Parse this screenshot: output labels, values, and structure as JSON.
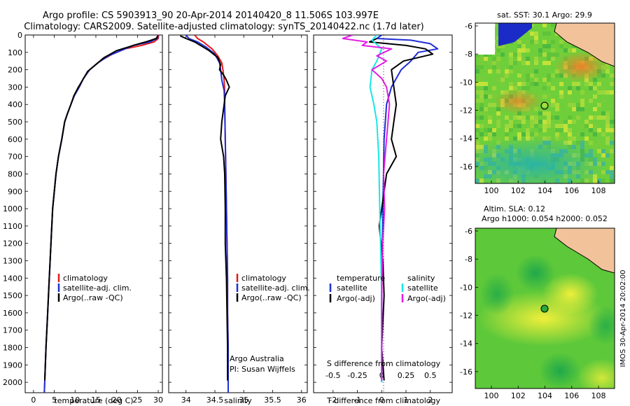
{
  "figure": {
    "title_line1": "Argo profile: CS 5903913_90 20-Apr-2014 20140420_8 11.506S 103.997E",
    "title_line2": "Climatology: CARS2009. Satellite-adjusted climatology: synTS_20140422.nc (1.7d later)",
    "side_stamp": "IMOS 30-Apr-2014 20:02:00"
  },
  "colors": {
    "climatology": "#e41b1b",
    "satellite": "#1f2fd6",
    "argo": "#000000",
    "sat_salinity": "#19e6e6",
    "argo_salinity_adj": "#e31ee6"
  },
  "chart_data": [
    {
      "type": "line",
      "id": "temperature",
      "title": "",
      "xlabel": "temperature (deg C)",
      "ylabel": "",
      "xlim": [
        -2,
        31
      ],
      "ylim": [
        2060,
        0
      ],
      "xticks": [
        0,
        5,
        10,
        15,
        20,
        25,
        30
      ],
      "yticks": [
        0,
        100,
        200,
        300,
        400,
        500,
        600,
        700,
        800,
        900,
        1000,
        1100,
        1200,
        1300,
        1400,
        1500,
        1600,
        1700,
        1800,
        1900,
        2000
      ],
      "legend": [
        "climatology",
        "satellite-adj. clim.",
        "Argo(..raw -QC)"
      ],
      "series": [
        {
          "name": "climatology",
          "color": "#e41b1b",
          "points": [
            [
              30.1,
              0
            ],
            [
              30,
              20
            ],
            [
              29,
              40
            ],
            [
              26,
              60
            ],
            [
              22,
              80
            ],
            [
              19,
              110
            ],
            [
              16,
              150
            ],
            [
              13.5,
              200
            ],
            [
              12,
              250
            ],
            [
              11,
              300
            ],
            [
              9.8,
              350
            ],
            [
              9,
              400
            ],
            [
              8.2,
              450
            ],
            [
              7.5,
              500
            ],
            [
              6.8,
              600
            ],
            [
              6,
              700
            ],
            [
              5.4,
              800
            ],
            [
              5,
              900
            ],
            [
              4.6,
              1000
            ],
            [
              4.2,
              1200
            ],
            [
              3.8,
              1400
            ],
            [
              3.4,
              1600
            ],
            [
              3,
              1800
            ],
            [
              2.7,
              2000
            ],
            [
              2.6,
              2060
            ]
          ]
        },
        {
          "name": "satellite-adj. clim.",
          "color": "#1f2fd6",
          "points": [
            [
              29.9,
              0
            ],
            [
              29.8,
              20
            ],
            [
              28,
              40
            ],
            [
              24,
              60
            ],
            [
              21,
              90
            ],
            [
              18,
              120
            ],
            [
              15.5,
              160
            ],
            [
              13.5,
              200
            ],
            [
              12,
              250
            ],
            [
              11,
              300
            ],
            [
              9.8,
              350
            ],
            [
              9,
              400
            ],
            [
              8.2,
              450
            ],
            [
              7.5,
              500
            ],
            [
              6.8,
              600
            ],
            [
              6,
              700
            ],
            [
              5.4,
              800
            ],
            [
              5,
              900
            ],
            [
              4.6,
              1000
            ],
            [
              4.2,
              1200
            ],
            [
              3.8,
              1400
            ],
            [
              3.4,
              1600
            ],
            [
              3,
              1800
            ],
            [
              2.7,
              2000
            ],
            [
              2.6,
              2060
            ]
          ]
        },
        {
          "name": "Argo(..raw -QC)",
          "color": "#000000",
          "points": [
            [
              29.9,
              5
            ],
            [
              29.5,
              20
            ],
            [
              27,
              40
            ],
            [
              24,
              60
            ],
            [
              20,
              90
            ],
            [
              17,
              130
            ],
            [
              15,
              170
            ],
            [
              13,
              210
            ],
            [
              11.8,
              260
            ],
            [
              10.8,
              300
            ],
            [
              9.7,
              350
            ],
            [
              9,
              400
            ],
            [
              8.2,
              450
            ],
            [
              7.5,
              500
            ],
            [
              6.8,
              600
            ],
            [
              6,
              700
            ],
            [
              5.4,
              800
            ],
            [
              5,
              900
            ],
            [
              4.6,
              1000
            ],
            [
              4.2,
              1200
            ],
            [
              3.8,
              1400
            ],
            [
              3.4,
              1600
            ],
            [
              3,
              1800
            ],
            [
              2.7,
              1990
            ]
          ]
        }
      ]
    },
    {
      "type": "line",
      "id": "salinity",
      "title": "",
      "xlabel": "salinity",
      "ylabel": "",
      "xlim": [
        33.7,
        36.1
      ],
      "ylim": [
        2060,
        0
      ],
      "xticks": [
        34,
        34.5,
        35,
        35.5,
        36
      ],
      "xticklabels": [
        "34",
        "34.5",
        "35",
        "35.5",
        "36"
      ],
      "legend": [
        "climatology",
        "satellite-adj. clim.",
        "Argo(..raw -QC)"
      ],
      "annotations": [
        "Argo Australia",
        "PI: Susan Wijffels"
      ],
      "series": [
        {
          "name": "climatology",
          "color": "#e41b1b",
          "points": [
            [
              34.15,
              0
            ],
            [
              34.2,
              20
            ],
            [
              34.3,
              40
            ],
            [
              34.45,
              80
            ],
            [
              34.55,
              120
            ],
            [
              34.62,
              160
            ],
            [
              34.64,
              200
            ],
            [
              34.66,
              260
            ],
            [
              34.67,
              320
            ],
            [
              34.67,
              400
            ],
            [
              34.68,
              600
            ],
            [
              34.69,
              800
            ],
            [
              34.7,
              1000
            ],
            [
              34.71,
              1200
            ],
            [
              34.72,
              1400
            ],
            [
              34.72,
              1600
            ],
            [
              34.73,
              1800
            ],
            [
              34.73,
              2000
            ],
            [
              34.73,
              2060
            ]
          ]
        },
        {
          "name": "satellite-adj. clim.",
          "color": "#1f2fd6",
          "points": [
            [
              34.0,
              0
            ],
            [
              34.05,
              20
            ],
            [
              34.2,
              40
            ],
            [
              34.35,
              70
            ],
            [
              34.5,
              110
            ],
            [
              34.58,
              160
            ],
            [
              34.6,
              200
            ],
            [
              34.62,
              260
            ],
            [
              34.66,
              320
            ],
            [
              34.67,
              400
            ],
            [
              34.68,
              600
            ],
            [
              34.69,
              800
            ],
            [
              34.7,
              1000
            ],
            [
              34.71,
              1200
            ],
            [
              34.72,
              1400
            ],
            [
              34.72,
              1600
            ],
            [
              34.73,
              1800
            ],
            [
              34.73,
              2000
            ],
            [
              34.73,
              2060
            ]
          ]
        },
        {
          "name": "Argo(..raw -QC)",
          "color": "#000000",
          "points": [
            [
              33.9,
              5
            ],
            [
              34.0,
              20
            ],
            [
              34.15,
              40
            ],
            [
              34.25,
              60
            ],
            [
              34.4,
              90
            ],
            [
              34.55,
              130
            ],
            [
              34.6,
              170
            ],
            [
              34.58,
              200
            ],
            [
              34.65,
              230
            ],
            [
              34.7,
              260
            ],
            [
              34.75,
              300
            ],
            [
              34.68,
              350
            ],
            [
              34.66,
              400
            ],
            [
              34.62,
              500
            ],
            [
              34.6,
              600
            ],
            [
              34.65,
              700
            ],
            [
              34.67,
              800
            ],
            [
              34.68,
              1000
            ],
            [
              34.68,
              1200
            ],
            [
              34.7,
              1400
            ],
            [
              34.71,
              1600
            ],
            [
              34.72,
              1800
            ],
            [
              34.72,
              1990
            ]
          ]
        }
      ]
    },
    {
      "type": "line",
      "id": "differences",
      "title": "",
      "xlabel": "T difference from climatology",
      "xlabel_top": "S difference from climatology",
      "xlim": [
        -2.8,
        2.9
      ],
      "ylim": [
        2060,
        0
      ],
      "xticks": [
        -2,
        -1,
        0,
        1,
        2
      ],
      "sticks": [
        -0.5,
        -0.25,
        0,
        0.25,
        0.5
      ],
      "sticklabels": [
        "-0.5",
        "-0.25",
        "0",
        "0.25",
        "0.5"
      ],
      "legend_temperature_title": "temperature",
      "legend_salinity_title": "salinity",
      "legend_temperature": [
        "satellite",
        "Argo(-adj)"
      ],
      "legend_salinity": [
        "satellite",
        "Argo(-adj)"
      ],
      "series": [
        {
          "name": "temperature satellite",
          "color": "#1f2fd6",
          "points": [
            [
              0,
              0
            ],
            [
              -0.2,
              20
            ],
            [
              1.2,
              30
            ],
            [
              2.0,
              50
            ],
            [
              2.3,
              80
            ],
            [
              1.5,
              100
            ],
            [
              1.2,
              150
            ],
            [
              0.8,
              200
            ],
            [
              0.4,
              300
            ],
            [
              0.2,
              400
            ],
            [
              0.1,
              600
            ],
            [
              0.05,
              1000
            ],
            [
              0,
              1500
            ],
            [
              0,
              2000
            ]
          ]
        },
        {
          "name": "temperature Argo(-adj)",
          "color": "#000000",
          "points": [
            [
              -0.2,
              20
            ],
            [
              -0.5,
              40
            ],
            [
              1.0,
              60
            ],
            [
              1.8,
              80
            ],
            [
              2.1,
              110
            ],
            [
              0.9,
              150
            ],
            [
              0.4,
              200
            ],
            [
              0.5,
              300
            ],
            [
              0.6,
              400
            ],
            [
              0.5,
              500
            ],
            [
              0.4,
              600
            ],
            [
              0.6,
              700
            ],
            [
              0.2,
              800
            ],
            [
              0,
              1000
            ],
            [
              -0.1,
              1100
            ],
            [
              0.05,
              1300
            ],
            [
              0.1,
              1500
            ],
            [
              0,
              1800
            ],
            [
              0.1,
              1990
            ]
          ]
        },
        {
          "name": "salinity satellite",
          "color": "#19e6e6",
          "points": [
            [
              -0.05,
              0
            ],
            [
              -0.1,
              30
            ],
            [
              0,
              80
            ],
            [
              -0.05,
              150
            ],
            [
              -0.1,
              200
            ],
            [
              -0.12,
              300
            ],
            [
              -0.08,
              400
            ],
            [
              -0.05,
              500
            ],
            [
              -0.03,
              700
            ],
            [
              -0.02,
              1000
            ],
            [
              0,
              1500
            ],
            [
              0,
              2000
            ]
          ]
        },
        {
          "name": "salinity Argo(-adj)",
          "color": "#e31ee6",
          "points": [
            [
              -0.3,
              0
            ],
            [
              -0.4,
              20
            ],
            [
              -0.15,
              40
            ],
            [
              -0.2,
              60
            ],
            [
              0.1,
              80
            ],
            [
              -0.05,
              120
            ],
            [
              0.05,
              150
            ],
            [
              -0.1,
              200
            ],
            [
              0,
              250
            ],
            [
              0.05,
              300
            ],
            [
              0.08,
              400
            ],
            [
              0.05,
              600
            ],
            [
              0.02,
              800
            ],
            [
              0.03,
              1000
            ],
            [
              0.01,
              1200
            ],
            [
              0,
              1500
            ],
            [
              0,
              1800
            ],
            [
              0,
              1990
            ]
          ]
        }
      ]
    },
    {
      "type": "heatmap",
      "id": "sst_map",
      "title": "sat. SST: 30.1 Argo: 29.9",
      "xticks": [
        100,
        102,
        104,
        106,
        108
      ],
      "yticks": [
        -6,
        -8,
        -10,
        -12,
        -14,
        -16
      ],
      "xlim": [
        98.8,
        109.2
      ],
      "ylim": [
        -17.2,
        -5.8
      ],
      "argo_position": [
        103.997,
        -11.506
      ]
    },
    {
      "type": "heatmap",
      "id": "sla_map",
      "title": "Altim. SLA: 0.12",
      "subtitle": "Argo h1000: 0.054 h2000: 0.052",
      "xticks": [
        100,
        102,
        104,
        106,
        108
      ],
      "yticks": [
        -6,
        -8,
        -10,
        -12,
        -14,
        -16
      ],
      "xlim": [
        98.8,
        109.2
      ],
      "ylim": [
        -17.2,
        -5.8
      ],
      "argo_position": [
        103.997,
        -11.506
      ]
    }
  ]
}
